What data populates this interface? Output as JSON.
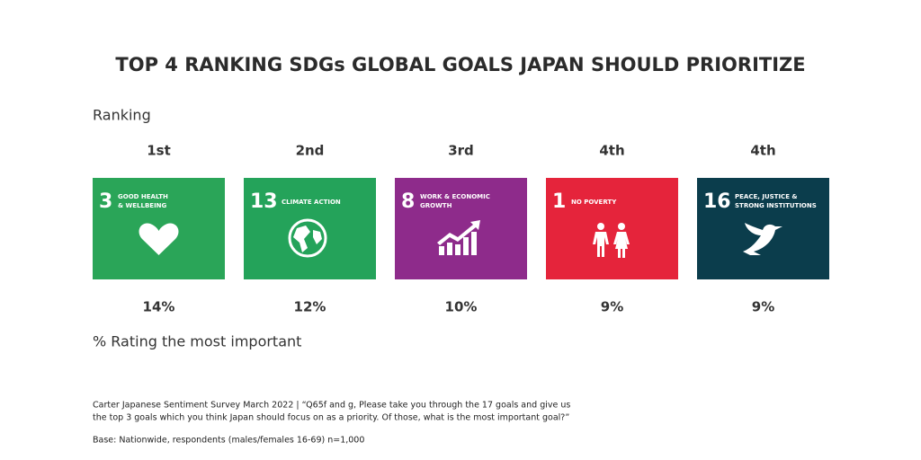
{
  "header": {
    "title": "TOP 4 RANKING SDGs GLOBAL GOALS JAPAN SHOULD PRIORITIZE"
  },
  "ranking_label": "Ranking",
  "goals": [
    {
      "rank": "1st",
      "number": "3",
      "label_lines": [
        "GOOD HEALTH",
        "& WELLBEING"
      ],
      "color": "#2aa558",
      "share": "14%"
    },
    {
      "rank": "2nd",
      "number": "13",
      "label_lines": [
        "CLIMATE ACTION"
      ],
      "color": "#24a35a",
      "share": "12%"
    },
    {
      "rank": "3rd",
      "number": "8",
      "label_lines": [
        "WORK & ECONOMIC",
        "GROWTH"
      ],
      "color": "#8e2b8b",
      "share": "10%"
    },
    {
      "rank": "4th",
      "number": "1",
      "label_lines": [
        "NO POVERTY"
      ],
      "color": "#e5243b",
      "share": "9%"
    },
    {
      "rank": "4th",
      "number": "16",
      "label_lines": [
        "PEACE, JUSTICE &",
        "STRONG INSTITUTIONS"
      ],
      "color": "#0b3d4c",
      "share": "9%"
    }
  ],
  "share_label": "% Rating the most important",
  "footer": {
    "source_lines": [
      "Carter Japanese Sentiment Survey March 2022 | “Q65f and g, Please take you through the 17 goals and give us",
      "the top 3 goals which you think Japan should focus on as a priority. Of those, what is the most important goal?”"
    ],
    "base": "Base: Nationwide, respondents (males/females 16-69) n=1,000"
  }
}
